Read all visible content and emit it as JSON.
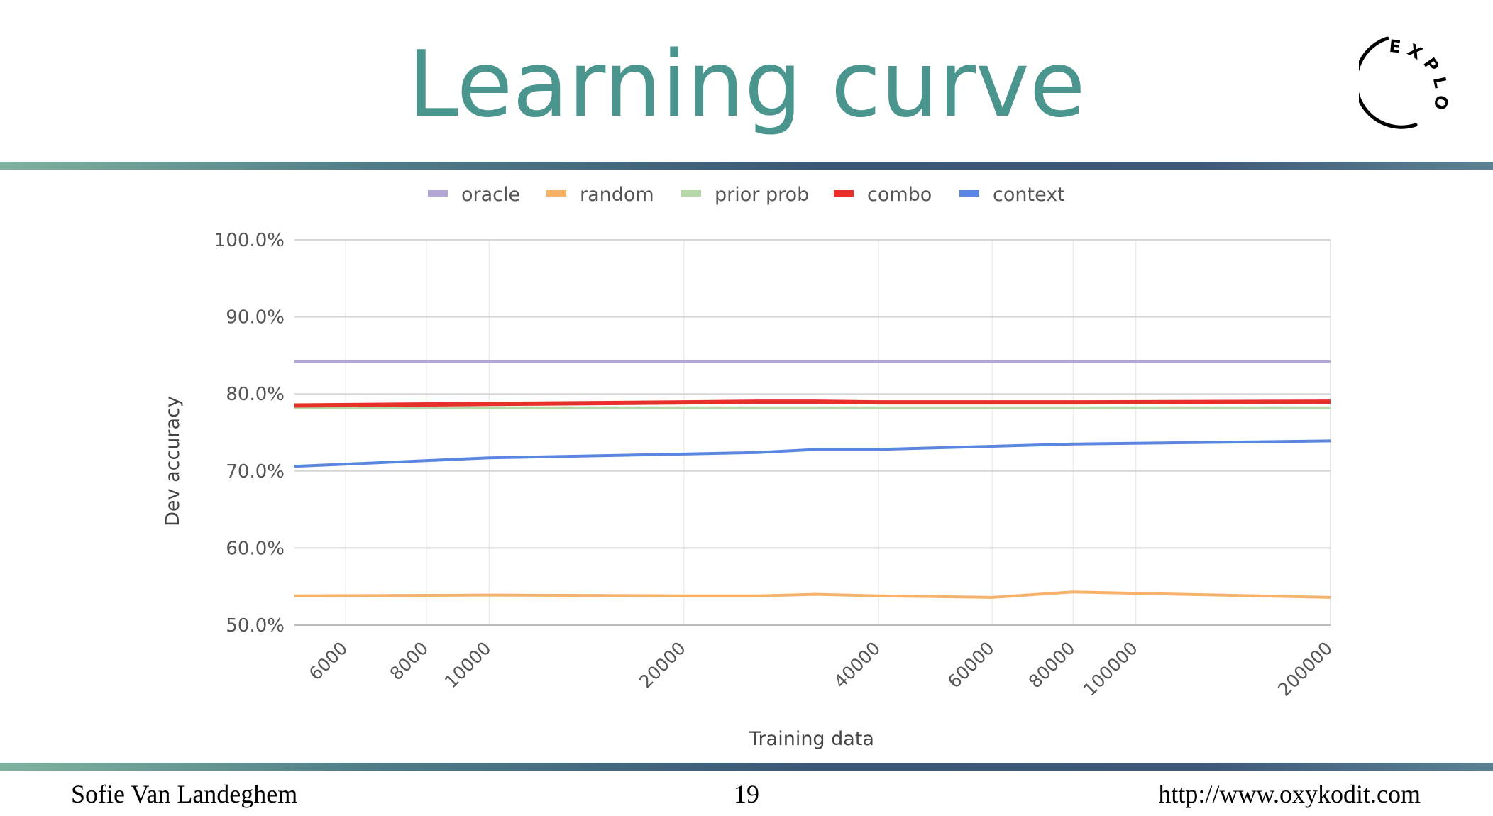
{
  "slide": {
    "title": "Learning curve",
    "footer_left": "Sofie Van Landeghem",
    "page_number": "19",
    "footer_right": "http://www.oxykodit.com",
    "logo_text": "EXPLOSION"
  },
  "colors": {
    "title": "#4a958d",
    "oracle": "#b4a7d6",
    "random": "#f6b26b",
    "prior_prob": "#b6d7a8",
    "combo": "#e8302a",
    "context": "#5b86e0"
  },
  "chart_data": {
    "type": "line",
    "xlabel": "Training data",
    "ylabel": "Dev accuracy",
    "x_scale": "log",
    "xlim": [
      5000,
      200000
    ],
    "ylim": [
      50,
      100
    ],
    "x_ticks": [
      "6000",
      "8000",
      "10000",
      "20000",
      "40000",
      "60000",
      "80000",
      "100000",
      "200000"
    ],
    "y_ticks": [
      "100.0%",
      "90.0%",
      "80.0%",
      "70.0%",
      "60.0%",
      "50.0%"
    ],
    "legend_position": "top",
    "grid": true,
    "x": [
      5000,
      10000,
      20000,
      26000,
      32000,
      40000,
      60000,
      80000,
      200000
    ],
    "series": [
      {
        "name": "oracle",
        "color": "#b4a7d6",
        "values": [
          84.2,
          84.2,
          84.2,
          84.2,
          84.2,
          84.2,
          84.2,
          84.2,
          84.2
        ]
      },
      {
        "name": "random",
        "color": "#f6b26b",
        "values": [
          53.8,
          53.9,
          53.8,
          53.8,
          54.0,
          53.8,
          53.6,
          54.3,
          53.6
        ]
      },
      {
        "name": "prior prob",
        "color": "#b6d7a8",
        "values": [
          78.2,
          78.2,
          78.2,
          78.2,
          78.2,
          78.2,
          78.2,
          78.2,
          78.2
        ]
      },
      {
        "name": "combo",
        "color": "#e8302a",
        "values": [
          78.5,
          78.7,
          78.9,
          79.0,
          79.0,
          78.9,
          78.9,
          78.9,
          79.0
        ]
      },
      {
        "name": "context",
        "color": "#5b86e0",
        "values": [
          70.6,
          71.7,
          72.2,
          72.4,
          72.8,
          72.8,
          73.2,
          73.5,
          73.9
        ]
      }
    ]
  }
}
